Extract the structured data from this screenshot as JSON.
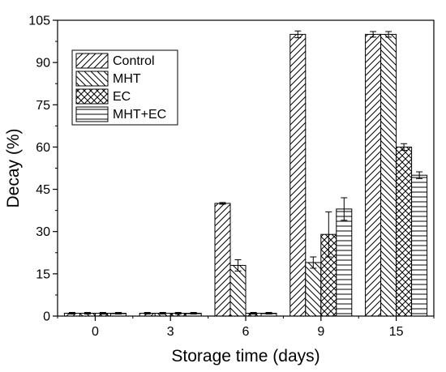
{
  "chart_data": {
    "type": "bar",
    "xlabel": "Storage time (days)",
    "ylabel": "Decay (%)",
    "ylim": [
      0,
      105
    ],
    "yticks": [
      0,
      15,
      30,
      45,
      60,
      75,
      90,
      105
    ],
    "categories": [
      "0",
      "3",
      "6",
      "9",
      "15"
    ],
    "legend_position": "top-left",
    "grid": false,
    "series": [
      {
        "name": "Control",
        "pattern": "hatch-forward",
        "values": [
          1,
          1,
          40,
          100,
          100
        ],
        "errors": [
          0.3,
          0.3,
          0.3,
          1.2,
          1.0
        ]
      },
      {
        "name": "MHT",
        "pattern": "hatch-backward",
        "values": [
          1,
          1,
          18,
          19,
          100
        ],
        "errors": [
          0.3,
          0.3,
          2.0,
          2.0,
          1.0
        ]
      },
      {
        "name": "EC",
        "pattern": "crosshatch",
        "values": [
          1,
          1,
          1,
          29,
          60
        ],
        "errors": [
          0.3,
          0.3,
          0.3,
          8.0,
          1.2
        ]
      },
      {
        "name": "MHT+EC",
        "pattern": "horizontal",
        "values": [
          1,
          1,
          1,
          38,
          50
        ],
        "errors": [
          0.3,
          0.3,
          0.3,
          4.0,
          1.2
        ]
      }
    ]
  }
}
